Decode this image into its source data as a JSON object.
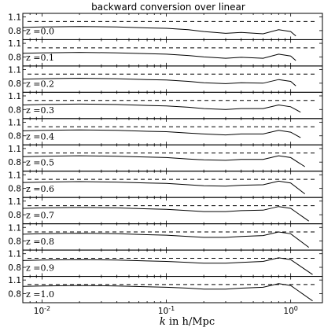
{
  "chart_data": {
    "type": "line",
    "title": "backward conversion over linear",
    "xlabel_var": "k",
    "xlabel_rest": " in h/Mpc",
    "x_scale": "log",
    "xlim": [
      0.007,
      1.8
    ],
    "x_ticks": [
      {
        "value": 0.01,
        "base": "10",
        "exp": "-2"
      },
      {
        "value": 0.1,
        "base": "10",
        "exp": "-1"
      },
      {
        "value": 1.0,
        "base": "10",
        "exp": "0"
      }
    ],
    "y_ticks": [
      {
        "value": 1.1,
        "label": "1.1"
      },
      {
        "value": 0.8,
        "label": "0.8"
      }
    ],
    "ylim": [
      0.6,
      1.18
    ],
    "reference_line": {
      "y": 1.0,
      "style": "dashed"
    },
    "series": [
      {
        "name": "z =0.0",
        "x": [
          0.007,
          0.01,
          0.02,
          0.04,
          0.07,
          0.1,
          0.15,
          0.2,
          0.3,
          0.4,
          0.6,
          0.8,
          1.0,
          1.1
        ],
        "y": [
          0.87,
          0.88,
          0.89,
          0.88,
          0.86,
          0.85,
          0.82,
          0.78,
          0.74,
          0.76,
          0.73,
          0.82,
          0.78,
          0.68
        ]
      },
      {
        "name": "z =0.1",
        "x": [
          0.007,
          0.01,
          0.02,
          0.04,
          0.07,
          0.1,
          0.15,
          0.2,
          0.3,
          0.4,
          0.6,
          0.8,
          1.0,
          1.1
        ],
        "y": [
          0.88,
          0.89,
          0.9,
          0.89,
          0.87,
          0.86,
          0.83,
          0.8,
          0.77,
          0.79,
          0.77,
          0.86,
          0.82,
          0.72
        ]
      },
      {
        "name": "z =0.2",
        "x": [
          0.007,
          0.01,
          0.02,
          0.04,
          0.07,
          0.1,
          0.15,
          0.2,
          0.3,
          0.4,
          0.6,
          0.8,
          1.0,
          1.1
        ],
        "y": [
          0.89,
          0.9,
          0.91,
          0.9,
          0.88,
          0.87,
          0.84,
          0.81,
          0.79,
          0.81,
          0.8,
          0.88,
          0.84,
          0.74
        ]
      },
      {
        "name": "z =0.3",
        "x": [
          0.007,
          0.01,
          0.02,
          0.04,
          0.07,
          0.1,
          0.15,
          0.2,
          0.3,
          0.4,
          0.6,
          0.8,
          1.0,
          1.2
        ],
        "y": [
          0.9,
          0.91,
          0.92,
          0.91,
          0.89,
          0.88,
          0.85,
          0.82,
          0.8,
          0.82,
          0.82,
          0.9,
          0.86,
          0.74
        ]
      },
      {
        "name": "z =0.4",
        "x": [
          0.007,
          0.01,
          0.02,
          0.04,
          0.07,
          0.1,
          0.15,
          0.2,
          0.3,
          0.4,
          0.6,
          0.8,
          1.0,
          1.2
        ],
        "y": [
          0.91,
          0.92,
          0.93,
          0.92,
          0.9,
          0.89,
          0.86,
          0.84,
          0.82,
          0.84,
          0.84,
          0.92,
          0.88,
          0.76
        ]
      },
      {
        "name": "z =0.5",
        "x": [
          0.007,
          0.01,
          0.02,
          0.04,
          0.07,
          0.1,
          0.15,
          0.2,
          0.3,
          0.4,
          0.6,
          0.8,
          1.0,
          1.3
        ],
        "y": [
          0.92,
          0.93,
          0.94,
          0.93,
          0.91,
          0.9,
          0.87,
          0.85,
          0.84,
          0.86,
          0.86,
          0.94,
          0.9,
          0.7
        ]
      },
      {
        "name": "z =0.6",
        "x": [
          0.007,
          0.01,
          0.02,
          0.04,
          0.07,
          0.1,
          0.15,
          0.2,
          0.3,
          0.4,
          0.6,
          0.8,
          1.0,
          1.3
        ],
        "y": [
          0.93,
          0.94,
          0.95,
          0.94,
          0.92,
          0.91,
          0.88,
          0.86,
          0.85,
          0.87,
          0.88,
          0.96,
          0.92,
          0.68
        ]
      },
      {
        "name": "z =0.7",
        "x": [
          0.007,
          0.01,
          0.02,
          0.04,
          0.07,
          0.1,
          0.15,
          0.2,
          0.3,
          0.4,
          0.6,
          0.8,
          1.0,
          1.4
        ],
        "y": [
          0.94,
          0.95,
          0.96,
          0.95,
          0.93,
          0.92,
          0.89,
          0.87,
          0.87,
          0.89,
          0.9,
          0.98,
          0.94,
          0.66
        ]
      },
      {
        "name": "z =0.8",
        "x": [
          0.007,
          0.01,
          0.02,
          0.04,
          0.07,
          0.1,
          0.15,
          0.2,
          0.3,
          0.4,
          0.6,
          0.8,
          1.0,
          1.4
        ],
        "y": [
          0.95,
          0.96,
          0.97,
          0.96,
          0.94,
          0.93,
          0.9,
          0.88,
          0.88,
          0.9,
          0.92,
          1.0,
          0.96,
          0.66
        ]
      },
      {
        "name": "z =0.9",
        "x": [
          0.007,
          0.01,
          0.02,
          0.04,
          0.07,
          0.1,
          0.15,
          0.2,
          0.3,
          0.4,
          0.6,
          0.8,
          1.0,
          1.5
        ],
        "y": [
          0.95,
          0.96,
          0.97,
          0.96,
          0.94,
          0.93,
          0.91,
          0.89,
          0.89,
          0.91,
          0.93,
          1.01,
          0.97,
          0.64
        ]
      },
      {
        "name": "z =1.0",
        "x": [
          0.007,
          0.01,
          0.02,
          0.04,
          0.07,
          0.1,
          0.15,
          0.2,
          0.3,
          0.4,
          0.6,
          0.8,
          1.0,
          1.5
        ],
        "y": [
          0.96,
          0.97,
          0.98,
          0.97,
          0.95,
          0.94,
          0.92,
          0.9,
          0.9,
          0.92,
          0.94,
          1.02,
          0.98,
          0.64
        ]
      }
    ]
  }
}
